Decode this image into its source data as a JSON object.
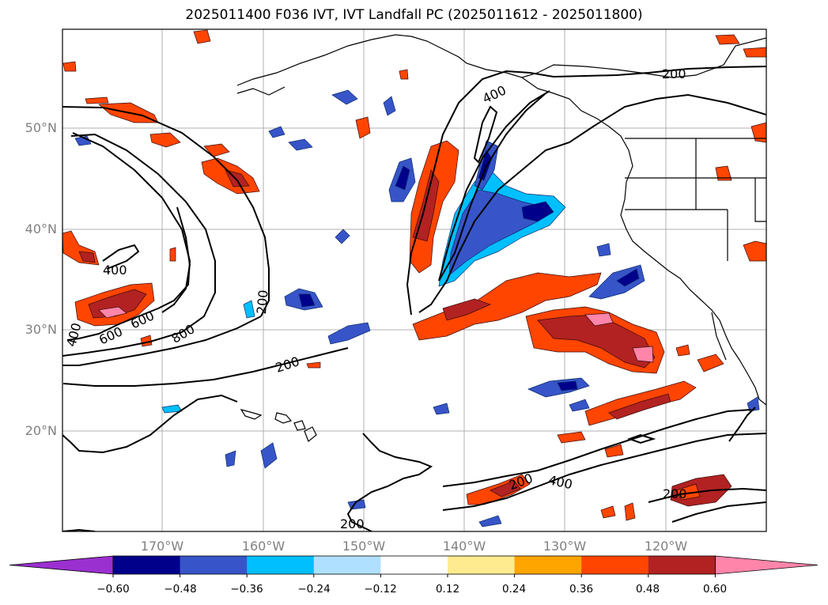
{
  "title": "2025011400 F036 IVT, IVT Landfall PC (2025011612 - 2025011800)",
  "lat_labels": [
    "50°N",
    "40°N",
    "30°N",
    "20°N"
  ],
  "lon_labels": [
    "170°W",
    "160°W",
    "150°W",
    "140°W",
    "130°W",
    "120°W"
  ],
  "colorbar": {
    "ticks": [
      "−0.60",
      "−0.48",
      "−0.36",
      "−0.24",
      "−0.12",
      "0.12",
      "0.24",
      "0.36",
      "0.48",
      "0.60"
    ],
    "colors": [
      "#9b30d0",
      "#00008b",
      "#3755c8",
      "#00bfff",
      "#b0e0ff",
      "#ffffff",
      "#ffeb8f",
      "#ffa500",
      "#ff4500",
      "#b22222",
      "#ff85aa"
    ]
  },
  "contour_labels": [
    "400",
    "200",
    "400",
    "600",
    "800",
    "400",
    "200",
    "600",
    "200",
    "200",
    "400",
    "200",
    "200"
  ],
  "colors": {
    "coast": "#000000",
    "grid": "#b0b0b0",
    "axis_text": "#808080"
  }
}
